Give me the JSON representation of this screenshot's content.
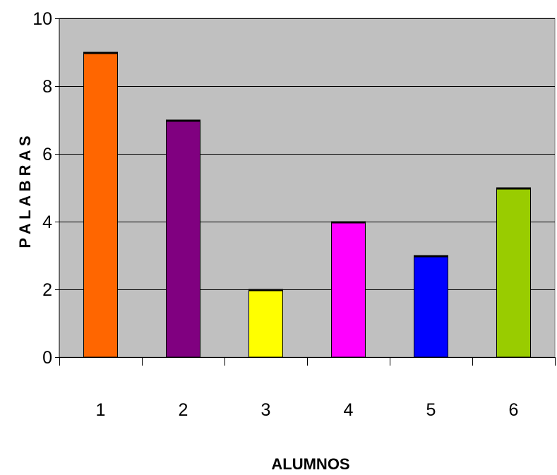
{
  "chart_data": {
    "type": "bar",
    "categories": [
      "1",
      "2",
      "3",
      "4",
      "5",
      "6"
    ],
    "values": [
      9,
      7,
      2,
      4,
      3,
      5
    ],
    "colors": [
      "#ff6600",
      "#800080",
      "#ffff00",
      "#ff00ff",
      "#0000ff",
      "#99cc00"
    ],
    "title": "",
    "xlabel": "ALUMNOS",
    "ylabel": "P A L A B R A S",
    "ylim": [
      0,
      10
    ],
    "yticks": [
      0,
      2,
      4,
      6,
      8,
      10
    ],
    "grid": true,
    "plot_background": "#c0c0c0"
  }
}
